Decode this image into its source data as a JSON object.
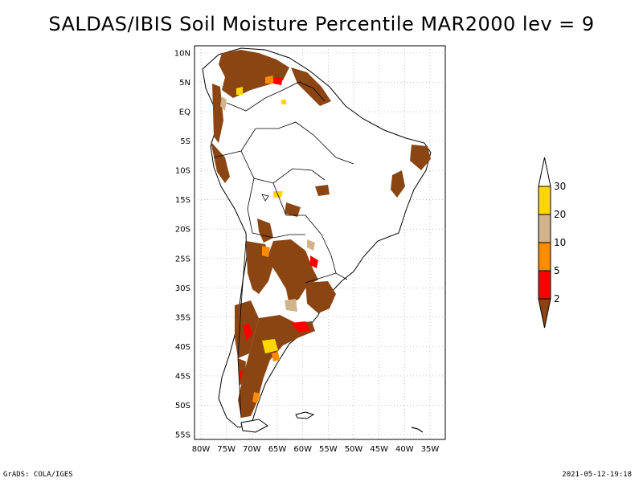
{
  "title": "SALDAS/IBIS Soil Moisture Percentile MAR2000 lev = 9",
  "map": {
    "lat_labels": [
      "10N",
      "5N",
      "EQ",
      "5S",
      "10S",
      "15S",
      "20S",
      "25S",
      "30S",
      "35S",
      "40S",
      "45S",
      "50S",
      "55S"
    ],
    "lon_labels": [
      "80W",
      "75W",
      "70W",
      "65W",
      "60W",
      "55W",
      "50W",
      "45W",
      "40W",
      "35W"
    ],
    "lat_range": [
      10,
      -55
    ],
    "lon_range": [
      -80,
      -35
    ],
    "grid": "dotted"
  },
  "legend": {
    "labels": [
      "2",
      "5",
      "10",
      "20",
      "30"
    ],
    "colors": [
      "#8b4513",
      "#ff0000",
      "#ff8c00",
      "#d2b48c",
      "#ffd700",
      "#ffffff"
    ]
  },
  "footer": {
    "left": "GrADS: COLA/IGES",
    "right": "2021-05-12-19:18"
  }
}
